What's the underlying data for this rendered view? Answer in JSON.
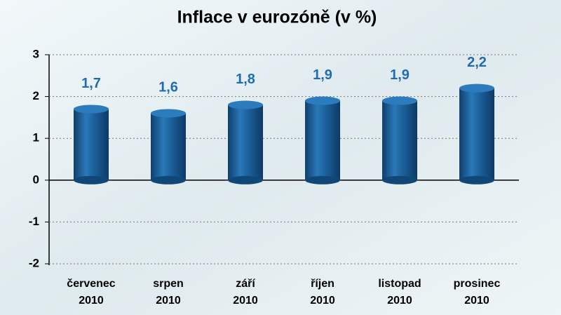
{
  "chart_data": {
    "type": "bar",
    "title": "Inflace v eurozóně (v %)",
    "categories": [
      "červenec 2010",
      "srpen 2010",
      "září 2010",
      "říjen 2010",
      "listopad 2010",
      "prosinec 2010"
    ],
    "values": [
      1.7,
      1.6,
      1.8,
      1.9,
      1.9,
      2.2
    ],
    "value_labels": [
      "1,7",
      "1,6",
      "1,8",
      "1,9",
      "1,9",
      "2,2"
    ],
    "color": "#1b5f99",
    "ylim": [
      -2,
      3
    ],
    "yticks": [
      3,
      2,
      1,
      0,
      -1,
      -2
    ],
    "grid": true
  }
}
